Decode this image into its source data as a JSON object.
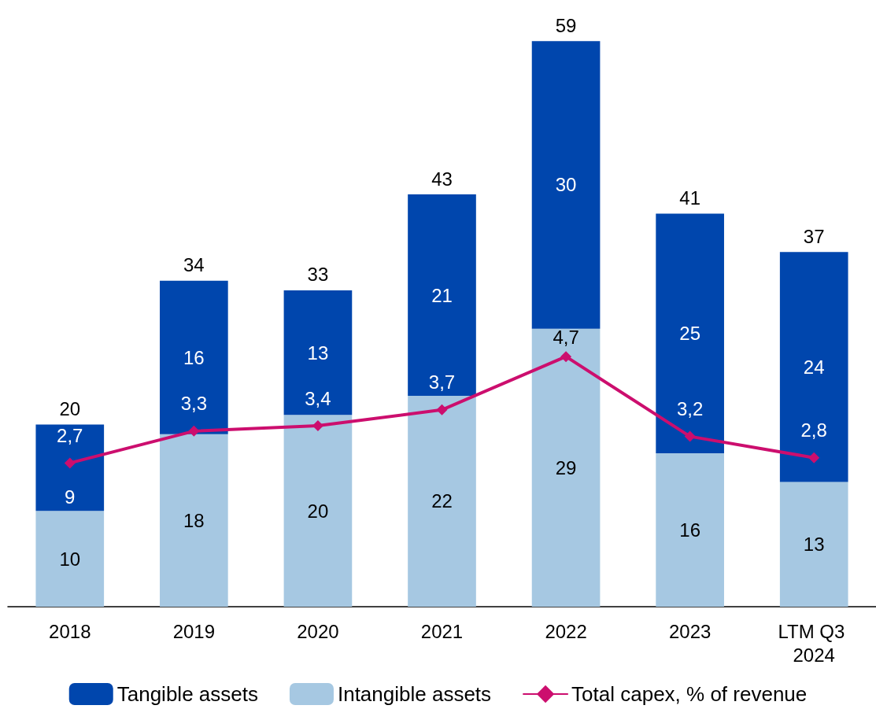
{
  "chart_data": {
    "type": "bar",
    "stacked": true,
    "categories": [
      "2018",
      "2019",
      "2020",
      "2021",
      "2022",
      "2023",
      "LTM Q3 2024"
    ],
    "series": [
      {
        "name": "Intangible assets",
        "color": "#a6c8e2",
        "values": [
          10,
          18,
          20,
          22,
          29,
          16,
          13
        ]
      },
      {
        "name": "Tangible assets",
        "color": "#0046ad",
        "values": [
          9,
          16,
          13,
          21,
          30,
          25,
          24
        ]
      },
      {
        "name": "Total capex, % of revenue",
        "type": "line",
        "axis": "y2",
        "color": "#cc0e6e",
        "marker": "diamond",
        "values": [
          2.7,
          3.3,
          3.4,
          3.7,
          4.7,
          3.2,
          2.8
        ],
        "value_labels": [
          "2,7",
          "3,3",
          "3,4",
          "3,7",
          "4,7",
          "3,2",
          "2,8"
        ]
      }
    ],
    "data_labels": true,
    "totals": [
      "20",
      "34",
      "33",
      "43",
      "59",
      "41",
      "37"
    ],
    "legend": "bottom",
    "grid": false
  }
}
